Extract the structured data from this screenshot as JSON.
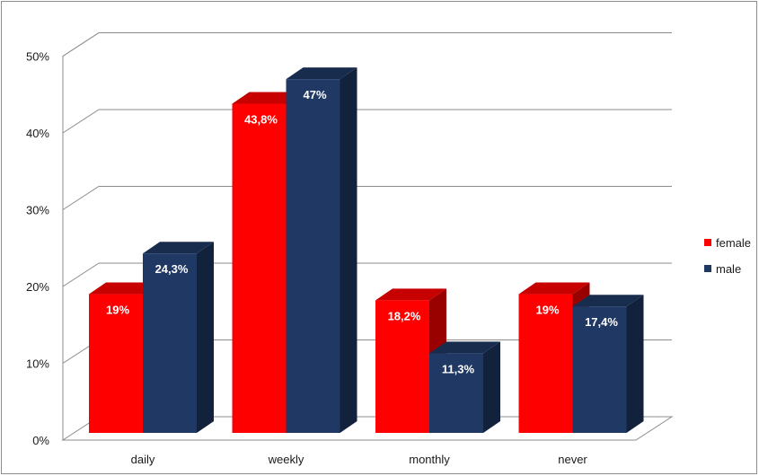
{
  "chart_data": {
    "type": "bar",
    "title": "",
    "xlabel": "",
    "ylabel": "",
    "ylim": [
      0,
      50
    ],
    "y_ticks": [
      "0%",
      "10%",
      "20%",
      "30%",
      "40%",
      "50%"
    ],
    "categories": [
      "daily",
      "weekly",
      "monthly",
      "never"
    ],
    "series": [
      {
        "name": "female",
        "color": "#ff0000",
        "values": [
          19,
          43.8,
          18.2,
          19
        ],
        "labels": [
          "19%",
          "43,8%",
          "18,2%",
          "19%"
        ]
      },
      {
        "name": "male",
        "color": "#1f3864",
        "values": [
          24.3,
          47,
          11.3,
          17.4
        ],
        "labels": [
          "24,3%",
          "47%",
          "11,3%",
          "17,4%"
        ]
      }
    ],
    "legend_position": "right",
    "grid": true,
    "style": "3d-clustered-column"
  }
}
